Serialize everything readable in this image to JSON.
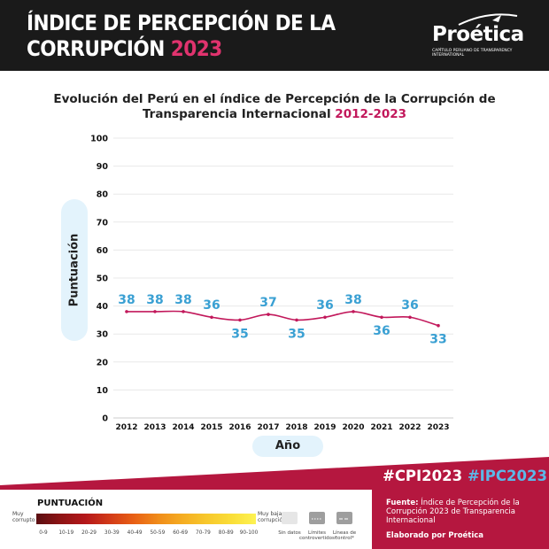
{
  "header": {
    "title_line1": "ÍNDICE DE PERCEPCIÓN DE LA",
    "title_line2_prefix": "CORRUPCIÓN ",
    "title_year": "2023",
    "logo_name": "Proética",
    "logo_sub": "CAPÍTULO PERUANO DE TRANSPARENCY INTERNATIONAL"
  },
  "chart_data": {
    "type": "line",
    "title_line1": "Evolución del Perú en el índice de Percepción de la Corrupción de",
    "title_line2": "Transparencia Internacional ",
    "title_range": "2012-2023",
    "xlabel": "Año",
    "ylabel": "Puntuación",
    "categories": [
      "2012",
      "2013",
      "2014",
      "2015",
      "2016",
      "2017",
      "2018",
      "2019",
      "2020",
      "2021",
      "2022",
      "2023"
    ],
    "values": [
      38,
      38,
      38,
      36,
      35,
      37,
      35,
      36,
      38,
      36,
      36,
      33
    ],
    "yticks": [
      0,
      10,
      20,
      30,
      40,
      50,
      60,
      70,
      80,
      90,
      100
    ],
    "ylim": [
      0,
      100
    ],
    "grid": true,
    "line_color": "#c2185b",
    "label_color": "#3aa0d3"
  },
  "footer": {
    "hashtag1": "#CPI2023",
    "hashtag2": "#IPC2023",
    "fuente_label": "Fuente:",
    "fuente_text": "Índice de Percepción de la Corrupción 2023 de Transparencia Internacional",
    "elaborado": "Elaborado por Proética",
    "accent_color": "#b5173f"
  },
  "legend": {
    "title": "PUNTUACIÓN",
    "left_label": "Muy corrupto",
    "right_label": "Muy baja corrupción",
    "ranges": [
      "0-9",
      "10-19",
      "20-29",
      "30-39",
      "40-49",
      "50-59",
      "60-69",
      "70-79",
      "80-89",
      "90-100"
    ],
    "sin_datos": "Sin datos",
    "limites": "Límites controvertidos*",
    "lineas": "Líneas de control*"
  }
}
